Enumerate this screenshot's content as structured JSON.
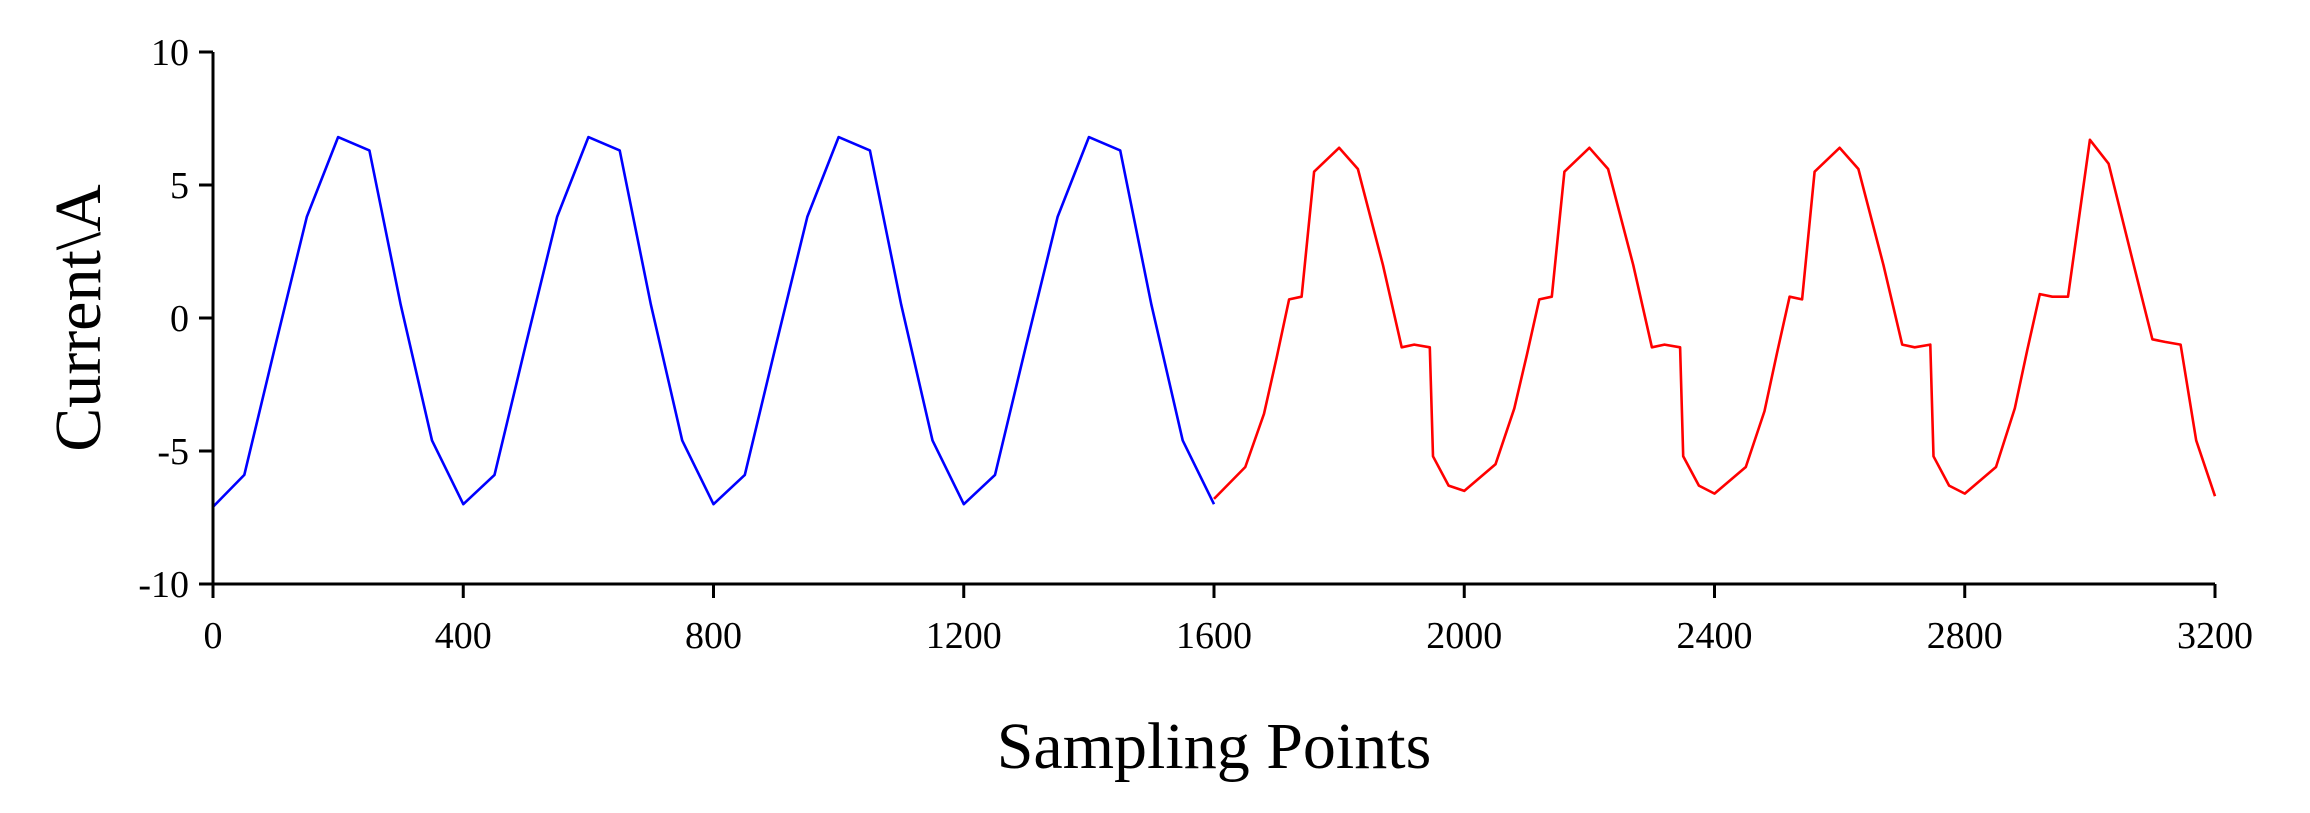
{
  "chart_data": {
    "type": "line",
    "title": "",
    "xlabel": "Sampling Points",
    "ylabel": "Current\\A",
    "xlim": [
      0,
      3200
    ],
    "ylim": [
      -10,
      10
    ],
    "x_ticks": [
      0,
      400,
      800,
      1200,
      1600,
      2000,
      2400,
      2800,
      3200
    ],
    "y_ticks": [
      -10,
      -5,
      0,
      5,
      10
    ],
    "grid": false,
    "legend": "none",
    "series": [
      {
        "color": "#0000ff",
        "x": [
          0,
          50,
          100,
          150,
          200,
          250,
          300,
          350,
          400,
          450,
          500,
          550,
          600,
          650,
          700,
          750,
          800,
          850,
          900,
          950,
          1000,
          1050,
          1100,
          1150,
          1200,
          1250,
          1300,
          1350,
          1400,
          1450,
          1500,
          1550,
          1600
        ],
        "y": [
          -7.1,
          -5.9,
          -1.0,
          3.8,
          6.8,
          6.3,
          0.5,
          -4.6,
          -7.0,
          -5.9,
          -1.0,
          3.8,
          6.8,
          6.3,
          0.5,
          -4.6,
          -7.0,
          -5.9,
          -1.0,
          3.8,
          6.8,
          6.3,
          0.5,
          -4.6,
          -7.0,
          -5.9,
          -1.0,
          3.8,
          6.8,
          6.3,
          0.5,
          -4.6,
          -7.0
        ]
      },
      {
        "color": "#ff0000",
        "x": [
          1600,
          1650,
          1680,
          1700,
          1720,
          1740,
          1760,
          1800,
          1830,
          1870,
          1900,
          1920,
          1945,
          1950,
          1975,
          2000,
          2050,
          2080,
          2100,
          2120,
          2140,
          2160,
          2200,
          2230,
          2270,
          2300,
          2320,
          2345,
          2350,
          2375,
          2400,
          2450,
          2480,
          2500,
          2520,
          2540,
          2560,
          2600,
          2630,
          2670,
          2700,
          2720,
          2745,
          2750,
          2775,
          2800,
          2850,
          2880,
          2900,
          2920,
          2940,
          2965,
          3000,
          3030,
          3070,
          3100,
          3120,
          3145,
          3170,
          3200
        ],
        "y": [
          -6.8,
          -5.6,
          -3.6,
          -1.5,
          0.7,
          0.8,
          5.5,
          6.4,
          5.6,
          2.0,
          -1.1,
          -1.0,
          -1.1,
          -5.2,
          -6.3,
          -6.5,
          -5.5,
          -3.4,
          -1.4,
          0.7,
          0.8,
          5.5,
          6.4,
          5.6,
          2.0,
          -1.1,
          -1.0,
          -1.1,
          -5.2,
          -6.3,
          -6.6,
          -5.6,
          -3.5,
          -1.3,
          0.8,
          0.7,
          5.5,
          6.4,
          5.6,
          2.0,
          -1.0,
          -1.1,
          -1.0,
          -5.2,
          -6.3,
          -6.6,
          -5.6,
          -3.4,
          -1.2,
          0.9,
          0.8,
          0.8,
          6.7,
          5.8,
          2.0,
          -0.8,
          -0.9,
          -1.0,
          -4.6,
          -6.7
        ]
      }
    ]
  }
}
